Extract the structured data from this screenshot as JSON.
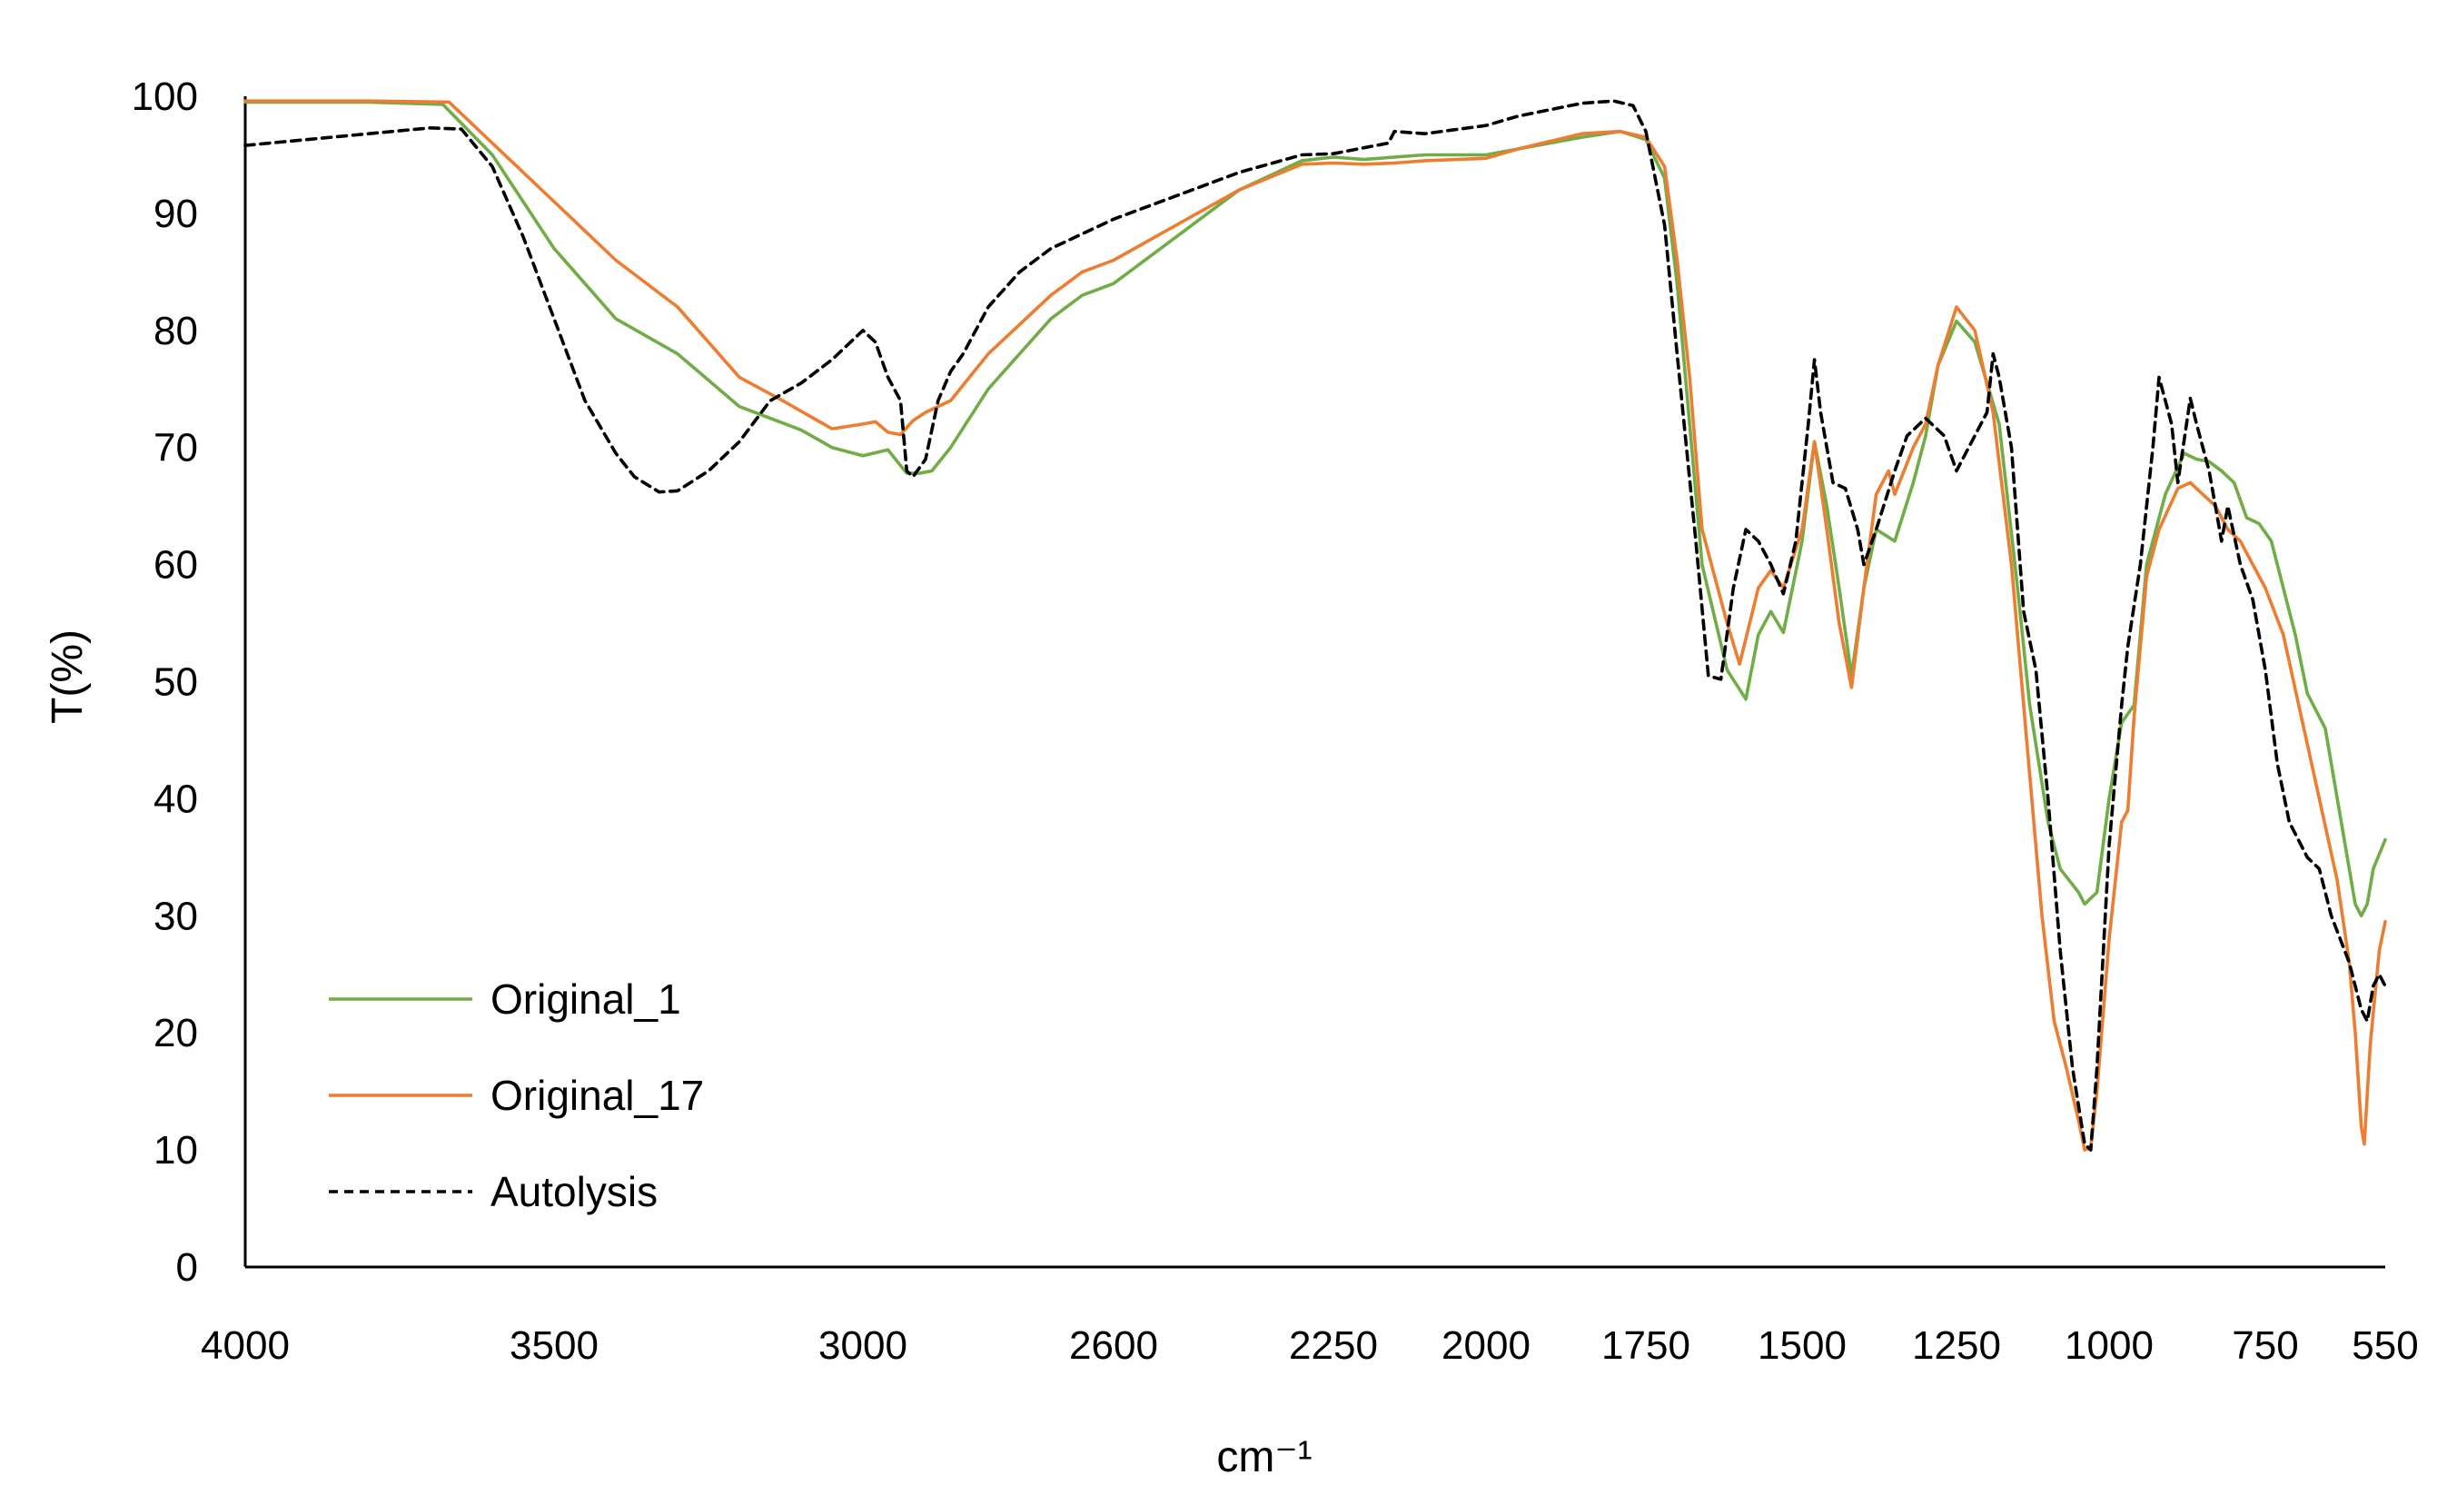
{
  "chart_data": {
    "type": "line",
    "title": "",
    "xlabel": "cm⁻¹",
    "ylabel": "T(%)",
    "xlim": [
      4000,
      550
    ],
    "ylim": [
      0,
      100
    ],
    "x_ticks": [
      "4000",
      "3500",
      "3000",
      "2600",
      "2250",
      "2000",
      "1750",
      "1500",
      "1250",
      "1000",
      "750",
      "550"
    ],
    "y_ticks": [
      "0",
      "10",
      "20",
      "30",
      "40",
      "50",
      "60",
      "70",
      "80",
      "90",
      "100"
    ],
    "grid": false,
    "legend_position": "bottom-left",
    "series": [
      {
        "name": "Original_1",
        "color": "#70AD47",
        "dash": "solid",
        "points": [
          [
            4000,
            99.5
          ],
          [
            3800,
            99.5
          ],
          [
            3680,
            99.3
          ],
          [
            3600,
            95
          ],
          [
            3500,
            87
          ],
          [
            3400,
            81
          ],
          [
            3300,
            78
          ],
          [
            3200,
            73.5
          ],
          [
            3100,
            71.5
          ],
          [
            3050,
            70
          ],
          [
            3000,
            69.3
          ],
          [
            2960,
            69.8
          ],
          [
            2930,
            67.8
          ],
          [
            2910,
            67.8
          ],
          [
            2890,
            68
          ],
          [
            2860,
            70
          ],
          [
            2800,
            75
          ],
          [
            2700,
            81
          ],
          [
            2650,
            83
          ],
          [
            2600,
            84
          ],
          [
            2500,
            88
          ],
          [
            2400,
            92
          ],
          [
            2300,
            94.5
          ],
          [
            2250,
            94.8
          ],
          [
            2200,
            94.6
          ],
          [
            2150,
            94.8
          ],
          [
            2100,
            95
          ],
          [
            2000,
            95
          ],
          [
            1950,
            95.5
          ],
          [
            1850,
            96.5
          ],
          [
            1790,
            97
          ],
          [
            1750,
            96.3
          ],
          [
            1720,
            93
          ],
          [
            1700,
            84
          ],
          [
            1680,
            72
          ],
          [
            1660,
            60
          ],
          [
            1620,
            51
          ],
          [
            1590,
            48.5
          ],
          [
            1570,
            54
          ],
          [
            1550,
            56
          ],
          [
            1530,
            54.2
          ],
          [
            1500,
            62
          ],
          [
            1480,
            70.5
          ],
          [
            1460,
            65
          ],
          [
            1440,
            58
          ],
          [
            1420,
            50.5
          ],
          [
            1400,
            58
          ],
          [
            1380,
            63
          ],
          [
            1350,
            62
          ],
          [
            1320,
            67
          ],
          [
            1300,
            71
          ],
          [
            1280,
            77
          ],
          [
            1250,
            80.8
          ],
          [
            1220,
            79
          ],
          [
            1180,
            72
          ],
          [
            1150,
            58
          ],
          [
            1130,
            48
          ],
          [
            1100,
            38
          ],
          [
            1080,
            34
          ],
          [
            1050,
            32
          ],
          [
            1040,
            31
          ],
          [
            1020,
            32
          ],
          [
            1000,
            40
          ],
          [
            980,
            46.5
          ],
          [
            960,
            48
          ],
          [
            940,
            60
          ],
          [
            910,
            66
          ],
          [
            880,
            69.5
          ],
          [
            860,
            69
          ],
          [
            840,
            68.8
          ],
          [
            820,
            68
          ],
          [
            800,
            67
          ],
          [
            780,
            64
          ],
          [
            760,
            63.5
          ],
          [
            740,
            62
          ],
          [
            720,
            58
          ],
          [
            700,
            54
          ],
          [
            680,
            49
          ],
          [
            650,
            46
          ],
          [
            630,
            40
          ],
          [
            610,
            34
          ],
          [
            600,
            31
          ],
          [
            590,
            30
          ],
          [
            580,
            31
          ],
          [
            570,
            34
          ],
          [
            550,
            36.5
          ]
        ]
      },
      {
        "name": "Original_17",
        "color": "#ED7D31",
        "dash": "solid",
        "points": [
          [
            4000,
            99.6
          ],
          [
            3800,
            99.6
          ],
          [
            3670,
            99.5
          ],
          [
            3600,
            96
          ],
          [
            3500,
            91
          ],
          [
            3400,
            86
          ],
          [
            3300,
            82
          ],
          [
            3200,
            76
          ],
          [
            3130,
            74
          ],
          [
            3080,
            72.5
          ],
          [
            3050,
            71.6
          ],
          [
            3000,
            72
          ],
          [
            2980,
            72.2
          ],
          [
            2960,
            71.3
          ],
          [
            2940,
            71.1
          ],
          [
            2920,
            72.3
          ],
          [
            2900,
            73
          ],
          [
            2860,
            74
          ],
          [
            2800,
            78
          ],
          [
            2700,
            83
          ],
          [
            2650,
            85
          ],
          [
            2600,
            86
          ],
          [
            2500,
            89
          ],
          [
            2400,
            92
          ],
          [
            2300,
            94.2
          ],
          [
            2250,
            94.3
          ],
          [
            2200,
            94.2
          ],
          [
            2150,
            94.3
          ],
          [
            2100,
            94.5
          ],
          [
            2000,
            94.7
          ],
          [
            1950,
            95.5
          ],
          [
            1850,
            96.8
          ],
          [
            1790,
            97
          ],
          [
            1750,
            96.5
          ],
          [
            1720,
            94
          ],
          [
            1700,
            86
          ],
          [
            1680,
            76
          ],
          [
            1660,
            63
          ],
          [
            1620,
            55
          ],
          [
            1600,
            51.5
          ],
          [
            1570,
            58
          ],
          [
            1550,
            59.5
          ],
          [
            1530,
            58
          ],
          [
            1500,
            63
          ],
          [
            1480,
            70.5
          ],
          [
            1460,
            63
          ],
          [
            1440,
            55
          ],
          [
            1420,
            49.5
          ],
          [
            1400,
            58
          ],
          [
            1380,
            66
          ],
          [
            1360,
            68
          ],
          [
            1350,
            66
          ],
          [
            1320,
            70
          ],
          [
            1300,
            72
          ],
          [
            1280,
            77
          ],
          [
            1250,
            82
          ],
          [
            1220,
            80
          ],
          [
            1190,
            73
          ],
          [
            1160,
            60
          ],
          [
            1130,
            42
          ],
          [
            1110,
            30
          ],
          [
            1090,
            21
          ],
          [
            1070,
            17
          ],
          [
            1050,
            12.5
          ],
          [
            1040,
            10
          ],
          [
            1030,
            10.2
          ],
          [
            1020,
            15
          ],
          [
            1000,
            28
          ],
          [
            980,
            38
          ],
          [
            970,
            39
          ],
          [
            960,
            47
          ],
          [
            940,
            59
          ],
          [
            920,
            63
          ],
          [
            890,
            66.5
          ],
          [
            870,
            67
          ],
          [
            850,
            66
          ],
          [
            830,
            65
          ],
          [
            810,
            63
          ],
          [
            790,
            62
          ],
          [
            770,
            60
          ],
          [
            750,
            58
          ],
          [
            720,
            54
          ],
          [
            690,
            47
          ],
          [
            660,
            40
          ],
          [
            630,
            33
          ],
          [
            610,
            26
          ],
          [
            600,
            20
          ],
          [
            590,
            12
          ],
          [
            585,
            10.5
          ],
          [
            575,
            19
          ],
          [
            560,
            27
          ],
          [
            550,
            29.5
          ]
        ]
      },
      {
        "name": "Autolysis",
        "color": "#000000",
        "dash": "dashed",
        "points": [
          [
            4000,
            95.8
          ],
          [
            3800,
            96.8
          ],
          [
            3700,
            97.3
          ],
          [
            3650,
            97.2
          ],
          [
            3600,
            94
          ],
          [
            3550,
            88
          ],
          [
            3500,
            81
          ],
          [
            3450,
            74
          ],
          [
            3400,
            69.5
          ],
          [
            3370,
            67.5
          ],
          [
            3330,
            66.2
          ],
          [
            3300,
            66.3
          ],
          [
            3250,
            68
          ],
          [
            3200,
            70.5
          ],
          [
            3150,
            74
          ],
          [
            3100,
            75.5
          ],
          [
            3050,
            77.5
          ],
          [
            3000,
            80
          ],
          [
            2980,
            79
          ],
          [
            2960,
            76
          ],
          [
            2940,
            74
          ],
          [
            2930,
            68
          ],
          [
            2920,
            67.5
          ],
          [
            2900,
            69
          ],
          [
            2880,
            74
          ],
          [
            2860,
            76.5
          ],
          [
            2840,
            78
          ],
          [
            2800,
            82
          ],
          [
            2750,
            85
          ],
          [
            2700,
            87
          ],
          [
            2600,
            89.5
          ],
          [
            2500,
            91.5
          ],
          [
            2400,
            93.5
          ],
          [
            2300,
            95
          ],
          [
            2250,
            95.1
          ],
          [
            2200,
            95.6
          ],
          [
            2160,
            96
          ],
          [
            2150,
            97
          ],
          [
            2100,
            96.8
          ],
          [
            2000,
            97.5
          ],
          [
            1950,
            98.3
          ],
          [
            1850,
            99.4
          ],
          [
            1800,
            99.6
          ],
          [
            1770,
            99.2
          ],
          [
            1750,
            97
          ],
          [
            1720,
            89
          ],
          [
            1700,
            78
          ],
          [
            1670,
            62
          ],
          [
            1650,
            50.5
          ],
          [
            1630,
            50.2
          ],
          [
            1610,
            58
          ],
          [
            1590,
            63
          ],
          [
            1570,
            62
          ],
          [
            1550,
            60
          ],
          [
            1530,
            57.5
          ],
          [
            1510,
            62
          ],
          [
            1490,
            72
          ],
          [
            1480,
            77.5
          ],
          [
            1470,
            73
          ],
          [
            1450,
            67
          ],
          [
            1430,
            66.5
          ],
          [
            1410,
            63
          ],
          [
            1400,
            60
          ],
          [
            1380,
            63
          ],
          [
            1350,
            68
          ],
          [
            1330,
            71
          ],
          [
            1300,
            72.5
          ],
          [
            1270,
            71
          ],
          [
            1250,
            68
          ],
          [
            1230,
            70
          ],
          [
            1200,
            73
          ],
          [
            1190,
            78
          ],
          [
            1180,
            76
          ],
          [
            1160,
            70
          ],
          [
            1140,
            56
          ],
          [
            1120,
            51
          ],
          [
            1100,
            40
          ],
          [
            1080,
            27
          ],
          [
            1060,
            17
          ],
          [
            1040,
            10.5
          ],
          [
            1030,
            10
          ],
          [
            1020,
            17
          ],
          [
            1000,
            36
          ],
          [
            990,
            42
          ],
          [
            980,
            48
          ],
          [
            970,
            53
          ],
          [
            950,
            60
          ],
          [
            930,
            70
          ],
          [
            920,
            76
          ],
          [
            900,
            72
          ],
          [
            890,
            67
          ],
          [
            870,
            74.2
          ],
          [
            860,
            72
          ],
          [
            840,
            68
          ],
          [
            830,
            65
          ],
          [
            820,
            62
          ],
          [
            810,
            65
          ],
          [
            790,
            60
          ],
          [
            770,
            57
          ],
          [
            750,
            51
          ],
          [
            730,
            43
          ],
          [
            710,
            38
          ],
          [
            680,
            35
          ],
          [
            660,
            34
          ],
          [
            640,
            30
          ],
          [
            610,
            26
          ],
          [
            590,
            22
          ],
          [
            580,
            21
          ],
          [
            570,
            24
          ],
          [
            560,
            25
          ],
          [
            550,
            24
          ]
        ]
      }
    ]
  }
}
